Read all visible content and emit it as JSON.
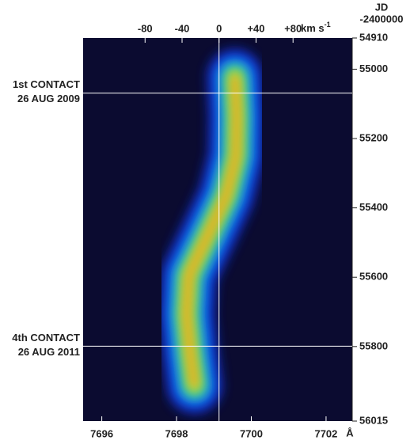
{
  "chart_data": {
    "type": "spectrum",
    "xlim": [
      7695.5,
      7702.7
    ],
    "xticks": [
      7696,
      7698,
      7700,
      7702
    ],
    "x_unit": "Å",
    "x2lim": [
      -147,
      144
    ],
    "x2ticks": [
      -80,
      -40,
      0,
      {
        "value": 40,
        "label": "+40"
      },
      {
        "value": 80,
        "label": "+80"
      }
    ],
    "x2_unit": "km s",
    "x2_unit_sup": "-1",
    "x2_zero_line": true,
    "ylim": [
      54910,
      56015
    ],
    "yticks": [
      54910,
      55000,
      55200,
      55400,
      55600,
      55800,
      56015
    ],
    "y_title": [
      "JD",
      "-2400000"
    ],
    "annotations": [
      {
        "y": 55069,
        "lines": [
          "1st CONTACT",
          "26 AUG 2009"
        ]
      },
      {
        "y": 55799,
        "lines": [
          "4th CONTACT",
          "26 AUG 2011"
        ]
      }
    ],
    "ridge": {
      "jd": [
        55022,
        55136,
        55251,
        55365,
        55479,
        55594,
        55708,
        55822,
        55913
      ],
      "wavelength": [
        7699.56,
        7699.61,
        7699.59,
        7699.33,
        7698.84,
        7698.33,
        7698.27,
        7698.37,
        7698.48
      ]
    },
    "background": "#0b0b30",
    "colors": [
      "#1838e8",
      "#0aa8ff",
      "#3ed870",
      "#eef02a",
      "#ff6a10"
    ]
  }
}
